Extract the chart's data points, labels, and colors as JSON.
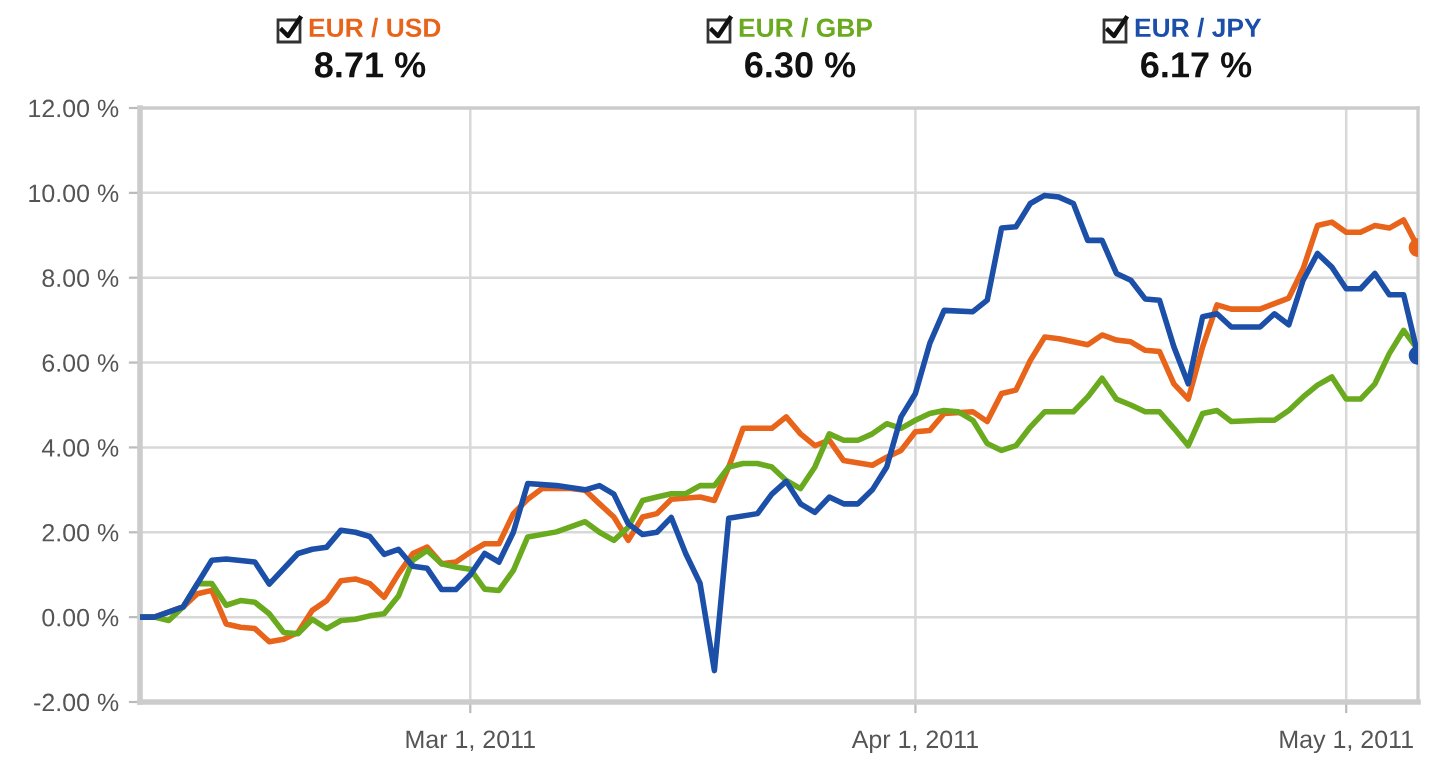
{
  "chart_data": {
    "type": "line",
    "series": [
      {
        "name": "EUR / USD",
        "color": "#e8641b",
        "x": [
          "2011-02-06",
          "2011-02-07",
          "2011-02-09",
          "2011-02-10",
          "2011-02-11",
          "2011-02-12",
          "2011-02-13",
          "2011-02-14",
          "2011-02-15",
          "2011-02-16",
          "2011-02-17",
          "2011-02-18",
          "2011-02-19",
          "2011-02-20",
          "2011-02-21",
          "2011-02-22",
          "2011-02-23",
          "2011-02-24",
          "2011-02-25",
          "2011-02-26",
          "2011-02-27",
          "2011-02-28",
          "2011-03-01",
          "2011-03-02",
          "2011-03-03",
          "2011-03-04",
          "2011-03-05",
          "2011-03-06",
          "2011-03-08",
          "2011-03-09",
          "2011-03-10",
          "2011-03-11",
          "2011-03-12",
          "2011-03-13",
          "2011-03-14",
          "2011-03-15",
          "2011-03-17",
          "2011-03-18",
          "2011-03-19",
          "2011-03-20",
          "2011-03-22",
          "2011-03-23",
          "2011-03-24",
          "2011-03-25",
          "2011-03-26",
          "2011-03-27",
          "2011-03-29",
          "2011-03-30",
          "2011-03-31",
          "2011-04-01",
          "2011-04-02",
          "2011-04-03",
          "2011-04-05",
          "2011-04-06",
          "2011-04-07",
          "2011-04-08",
          "2011-04-09",
          "2011-04-10",
          "2011-04-11",
          "2011-04-13",
          "2011-04-14",
          "2011-04-15",
          "2011-04-16",
          "2011-04-17",
          "2011-04-18",
          "2011-04-19",
          "2011-04-20",
          "2011-04-21",
          "2011-04-22",
          "2011-04-23",
          "2011-04-25",
          "2011-04-26",
          "2011-04-27",
          "2011-04-28",
          "2011-04-29",
          "2011-04-30",
          "2011-05-01",
          "2011-05-02",
          "2011-05-03",
          "2011-05-04",
          "2011-05-05",
          "2011-05-06"
        ],
        "values": [
          0,
          0,
          0.24,
          0.55,
          0.63,
          -0.16,
          -0.24,
          -0.27,
          -0.58,
          -0.52,
          -0.36,
          0.16,
          0.39,
          0.86,
          0.9,
          0.79,
          0.47,
          1.02,
          1.5,
          1.65,
          1.26,
          1.3,
          1.53,
          1.73,
          1.73,
          2.44,
          2.78,
          3.03,
          3.03,
          2.99,
          2.67,
          2.36,
          1.81,
          2.36,
          2.44,
          2.78,
          2.83,
          2.75,
          3.54,
          4.45,
          4.45,
          4.72,
          4.32,
          4.04,
          4.17,
          3.69,
          3.58,
          3.77,
          3.93,
          4.37,
          4.4,
          4.8,
          4.84,
          4.61,
          5.27,
          5.35,
          6.05,
          6.6,
          6.56,
          6.42,
          6.65,
          6.53,
          6.49,
          6.29,
          6.26,
          5.5,
          5.14,
          6.37,
          7.36,
          7.26,
          7.26,
          7.39,
          7.52,
          8.21,
          9.23,
          9.31,
          9.07,
          9.07,
          9.23,
          9.17,
          9.36,
          8.71
        ]
      },
      {
        "name": "EUR / GBP",
        "color": "#6aaa1e",
        "x": [
          "2011-02-06",
          "2011-02-07",
          "2011-02-08",
          "2011-02-09",
          "2011-02-10",
          "2011-02-11",
          "2011-02-12",
          "2011-02-13",
          "2011-02-14",
          "2011-02-15",
          "2011-02-16",
          "2011-02-17",
          "2011-02-18",
          "2011-02-19",
          "2011-02-20",
          "2011-02-21",
          "2011-02-22",
          "2011-02-23",
          "2011-02-24",
          "2011-02-25",
          "2011-02-26",
          "2011-02-27",
          "2011-02-28",
          "2011-03-01",
          "2011-03-02",
          "2011-03-03",
          "2011-03-04",
          "2011-03-05",
          "2011-03-07",
          "2011-03-09",
          "2011-03-10",
          "2011-03-11",
          "2011-03-12",
          "2011-03-13",
          "2011-03-14",
          "2011-03-15",
          "2011-03-16",
          "2011-03-17",
          "2011-03-18",
          "2011-03-19",
          "2011-03-20",
          "2011-03-21",
          "2011-03-22",
          "2011-03-23",
          "2011-03-24",
          "2011-03-25",
          "2011-03-26",
          "2011-03-27",
          "2011-03-28",
          "2011-03-29",
          "2011-03-30",
          "2011-03-31",
          "2011-04-01",
          "2011-04-02",
          "2011-04-03",
          "2011-04-04",
          "2011-04-05",
          "2011-04-06",
          "2011-04-07",
          "2011-04-08",
          "2011-04-09",
          "2011-04-10",
          "2011-04-11",
          "2011-04-12",
          "2011-04-13",
          "2011-04-14",
          "2011-04-15",
          "2011-04-16",
          "2011-04-17",
          "2011-04-18",
          "2011-04-19",
          "2011-04-20",
          "2011-04-21",
          "2011-04-22",
          "2011-04-23",
          "2011-04-25",
          "2011-04-26",
          "2011-04-27",
          "2011-04-28",
          "2011-04-29",
          "2011-04-30",
          "2011-05-01",
          "2011-05-02",
          "2011-05-03",
          "2011-05-04",
          "2011-05-05",
          "2011-05-06"
        ],
        "values": [
          0,
          0,
          -0.08,
          0.24,
          0.79,
          0.79,
          0.28,
          0.39,
          0.35,
          0.08,
          -0.36,
          -0.39,
          -0.05,
          -0.27,
          -0.08,
          -0.05,
          0.03,
          0.08,
          0.5,
          1.34,
          1.57,
          1.26,
          1.18,
          1.13,
          0.66,
          0.63,
          1.1,
          1.89,
          2.01,
          2.25,
          2.0,
          1.81,
          2.12,
          2.75,
          2.83,
          2.91,
          2.91,
          3.1,
          3.1,
          3.54,
          3.62,
          3.62,
          3.54,
          3.22,
          3.03,
          3.54,
          4.32,
          4.17,
          4.17,
          4.32,
          4.56,
          4.45,
          4.64,
          4.8,
          4.87,
          4.84,
          4.64,
          4.09,
          3.93,
          4.04,
          4.48,
          4.84,
          4.84,
          4.84,
          5.19,
          5.63,
          5.14,
          5.0,
          4.84,
          4.84,
          4.45,
          4.04,
          4.8,
          4.87,
          4.61,
          4.64,
          4.64,
          4.87,
          5.19,
          5.47,
          5.66,
          5.14,
          5.14,
          5.5,
          6.21,
          6.76,
          6.3
        ]
      },
      {
        "name": "EUR / JPY",
        "color": "#1c4fa8",
        "x": [
          "2011-02-06",
          "2011-02-07",
          "2011-02-09",
          "2011-02-11",
          "2011-02-12",
          "2011-02-14",
          "2011-02-15",
          "2011-02-17",
          "2011-02-18",
          "2011-02-19",
          "2011-02-20",
          "2011-02-21",
          "2011-02-22",
          "2011-02-23",
          "2011-02-24",
          "2011-02-25",
          "2011-02-26",
          "2011-02-27",
          "2011-02-28",
          "2011-03-01",
          "2011-03-02",
          "2011-03-03",
          "2011-03-04",
          "2011-03-05",
          "2011-03-07",
          "2011-03-09",
          "2011-03-10",
          "2011-03-11",
          "2011-03-12",
          "2011-03-13",
          "2011-03-14",
          "2011-03-15",
          "2011-03-16",
          "2011-03-17",
          "2011-03-18",
          "2011-03-19",
          "2011-03-21",
          "2011-03-22",
          "2011-03-23",
          "2011-03-24",
          "2011-03-25",
          "2011-03-26",
          "2011-03-27",
          "2011-03-28",
          "2011-03-29",
          "2011-03-30",
          "2011-03-31",
          "2011-04-01",
          "2011-04-02",
          "2011-04-03",
          "2011-04-05",
          "2011-04-06",
          "2011-04-07",
          "2011-04-08",
          "2011-04-09",
          "2011-04-10",
          "2011-04-11",
          "2011-04-12",
          "2011-04-13",
          "2011-04-14",
          "2011-04-15",
          "2011-04-16",
          "2011-04-17",
          "2011-04-18",
          "2011-04-19",
          "2011-04-20",
          "2011-04-21",
          "2011-04-22",
          "2011-04-23",
          "2011-04-25",
          "2011-04-26",
          "2011-04-27",
          "2011-04-28",
          "2011-04-29",
          "2011-04-30",
          "2011-05-01",
          "2011-05-02",
          "2011-05-03",
          "2011-05-04",
          "2011-05-05",
          "2011-05-06"
        ],
        "values": [
          0,
          0,
          0.24,
          1.34,
          1.37,
          1.3,
          0.78,
          1.5,
          1.6,
          1.65,
          2.05,
          2.0,
          1.9,
          1.48,
          1.6,
          1.2,
          1.15,
          0.65,
          0.65,
          1.0,
          1.5,
          1.3,
          2.0,
          3.15,
          3.1,
          3.0,
          3.1,
          2.9,
          2.2,
          1.95,
          2.0,
          2.35,
          1.5,
          0.8,
          -1.26,
          2.33,
          2.44,
          2.9,
          3.2,
          2.67,
          2.47,
          2.83,
          2.67,
          2.67,
          3.0,
          3.54,
          4.72,
          5.27,
          6.45,
          7.23,
          7.2,
          7.47,
          9.17,
          9.2,
          9.75,
          9.94,
          9.9,
          9.75,
          8.88,
          8.88,
          8.1,
          7.94,
          7.5,
          7.47,
          6.37,
          5.5,
          7.08,
          7.15,
          6.84,
          6.84,
          7.15,
          6.89,
          7.94,
          8.57,
          8.25,
          7.74,
          7.74,
          8.1,
          7.6,
          7.6,
          6.17
        ]
      },
      {
        "type": "scatter",
        "color": "#e8641b",
        "x": [
          "2011-05-06"
        ],
        "values": [
          8.71
        ]
      },
      {
        "type": "scatter",
        "color": "#1c4fa8",
        "x": [
          "2011-05-06"
        ],
        "values": [
          6.17
        ]
      }
    ],
    "annotations": [
      "8.71 %",
      "6.30 %",
      "6.17 %"
    ],
    "xlim": [
      "2011-02-06",
      "2011-05-06"
    ],
    "xticks": [
      {
        "value": "2011-03-01",
        "label": "Mar 1, 2011"
      },
      {
        "value": "2011-04-01",
        "label": "Apr 1, 2011"
      },
      {
        "value": "2011-05-01",
        "label": "May 1, 2011"
      }
    ],
    "ylim": [
      -2,
      12
    ],
    "yticks": [
      {
        "value": -2,
        "label": "-2.00 %"
      },
      {
        "value": 0,
        "label": "0.00 %"
      },
      {
        "value": 2,
        "label": "2.00 %"
      },
      {
        "value": 4,
        "label": "4.00 %"
      },
      {
        "value": 6,
        "label": "6.00 %"
      },
      {
        "value": 8,
        "label": "8.00 %"
      },
      {
        "value": 10,
        "label": "10.00 %"
      },
      {
        "value": 12,
        "label": "12.00 %"
      }
    ],
    "grid": true,
    "legend": "top"
  }
}
